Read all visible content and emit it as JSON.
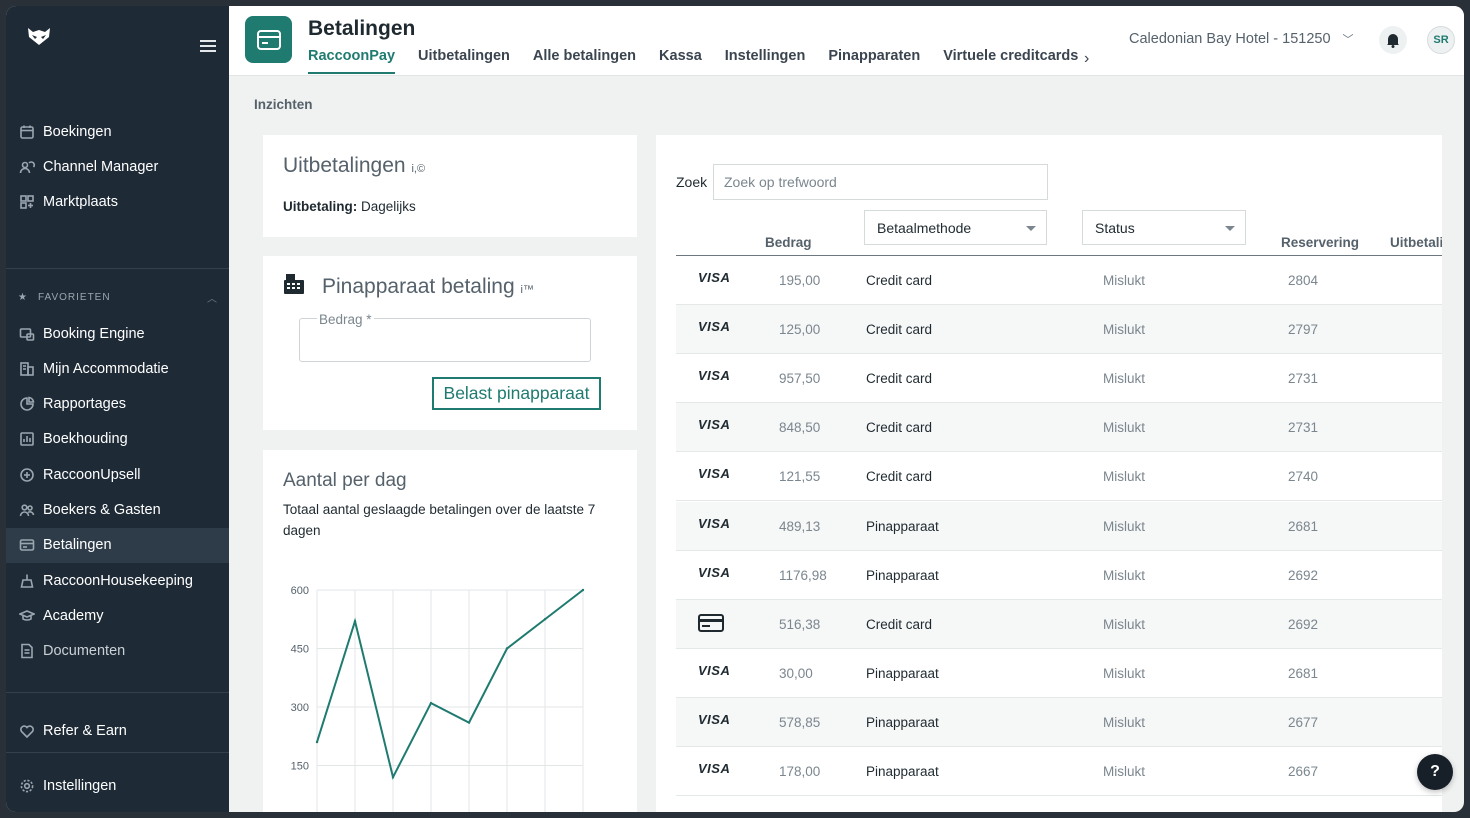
{
  "sidebar": {
    "main_items": [
      {
        "label": "Boekingen",
        "icon": "calendar-icon"
      },
      {
        "label": "Channel Manager",
        "icon": "users-cloud-icon"
      },
      {
        "label": "Marktplaats",
        "icon": "grid-plus-icon"
      }
    ],
    "favorites_label": "FAVORIETEN",
    "favorites": [
      {
        "label": "Booking Engine",
        "icon": "booking-engine-icon"
      },
      {
        "label": "Mijn Accommodatie",
        "icon": "building-icon"
      },
      {
        "label": "Rapportages",
        "icon": "pie-chart-icon"
      },
      {
        "label": "Boekhouding",
        "icon": "bar-chart-icon"
      },
      {
        "label": "RaccoonUpsell",
        "icon": "plus-circle-icon"
      },
      {
        "label": "Boekers & Gasten",
        "icon": "people-icon"
      },
      {
        "label": "Betalingen",
        "icon": "card-icon"
      },
      {
        "label": "RaccoonHousekeeping",
        "icon": "broom-icon"
      },
      {
        "label": "Academy",
        "icon": "graduation-icon"
      },
      {
        "label": "Documenten",
        "icon": "document-icon"
      }
    ],
    "refer": {
      "label": "Refer & Earn",
      "icon": "heart-icon"
    },
    "settings": {
      "label": "Instellingen",
      "icon": "gear-icon"
    }
  },
  "header": {
    "title": "Betalingen",
    "tabs": [
      "RaccoonPay",
      "Uitbetalingen",
      "Alle betalingen",
      "Kassa",
      "Instellingen",
      "Pinapparaten",
      "Virtuele creditcards"
    ],
    "active_tab": "RaccoonPay",
    "hotel": "Caledonian Bay Hotel - 151250",
    "avatar_initials": "SR"
  },
  "breadcrumb": "Inzichten",
  "payout_card": {
    "title": "Uitbetalingen",
    "info": "i,©",
    "label": "Uitbetaling:",
    "value": "Dagelijks"
  },
  "terminal_card": {
    "title": "Pinapparaat betaling",
    "info": "i™",
    "amount_label": "Bedrag *",
    "button": "Belast pinapparaat"
  },
  "chart_card": {
    "title": "Aantal per dag",
    "subtitle": "Totaal aantal geslaagde betalingen over de laatste 7 dagen"
  },
  "chart_data": {
    "type": "line",
    "title": "Aantal per dag",
    "yticks": [
      600,
      450,
      300,
      150
    ],
    "ylim": [
      0,
      600
    ],
    "values": [
      210,
      520,
      120,
      310,
      260,
      450,
      525,
      600
    ],
    "color": "#1f7a70",
    "grid": true
  },
  "payments": {
    "search_label": "Zoek",
    "search_placeholder": "Zoek op trefwoord",
    "columns": {
      "amount": "Bedrag",
      "method": "Betaalmethode",
      "status": "Status",
      "reservation": "Reservering",
      "payout": "Uitbetali"
    },
    "rows": [
      {
        "brand": "VISA",
        "amount": "195,00",
        "method": "Credit card",
        "status": "Mislukt",
        "reservation": "2804"
      },
      {
        "brand": "VISA",
        "amount": "125,00",
        "method": "Credit card",
        "status": "Mislukt",
        "reservation": "2797"
      },
      {
        "brand": "VISA",
        "amount": "957,50",
        "method": "Credit card",
        "status": "Mislukt",
        "reservation": "2731"
      },
      {
        "brand": "VISA",
        "amount": "848,50",
        "method": "Credit card",
        "status": "Mislukt",
        "reservation": "2731"
      },
      {
        "brand": "VISA",
        "amount": "121,55",
        "method": "Credit card",
        "status": "Mislukt",
        "reservation": "2740"
      },
      {
        "brand": "VISA",
        "amount": "489,13",
        "method": "Pinapparaat",
        "status": "Mislukt",
        "reservation": "2681"
      },
      {
        "brand": "VISA",
        "amount": "1176,98",
        "method": "Pinapparaat",
        "status": "Mislukt",
        "reservation": "2692"
      },
      {
        "brand": "",
        "amount": "516,38",
        "method": "Credit card",
        "status": "Mislukt",
        "reservation": "2692"
      },
      {
        "brand": "VISA",
        "amount": "30,00",
        "method": "Pinapparaat",
        "status": "Mislukt",
        "reservation": "2681"
      },
      {
        "brand": "VISA",
        "amount": "578,85",
        "method": "Pinapparaat",
        "status": "Mislukt",
        "reservation": "2677"
      },
      {
        "brand": "VISA",
        "amount": "178,00",
        "method": "Pinapparaat",
        "status": "Mislukt",
        "reservation": "2667"
      }
    ]
  },
  "help_label": "?"
}
